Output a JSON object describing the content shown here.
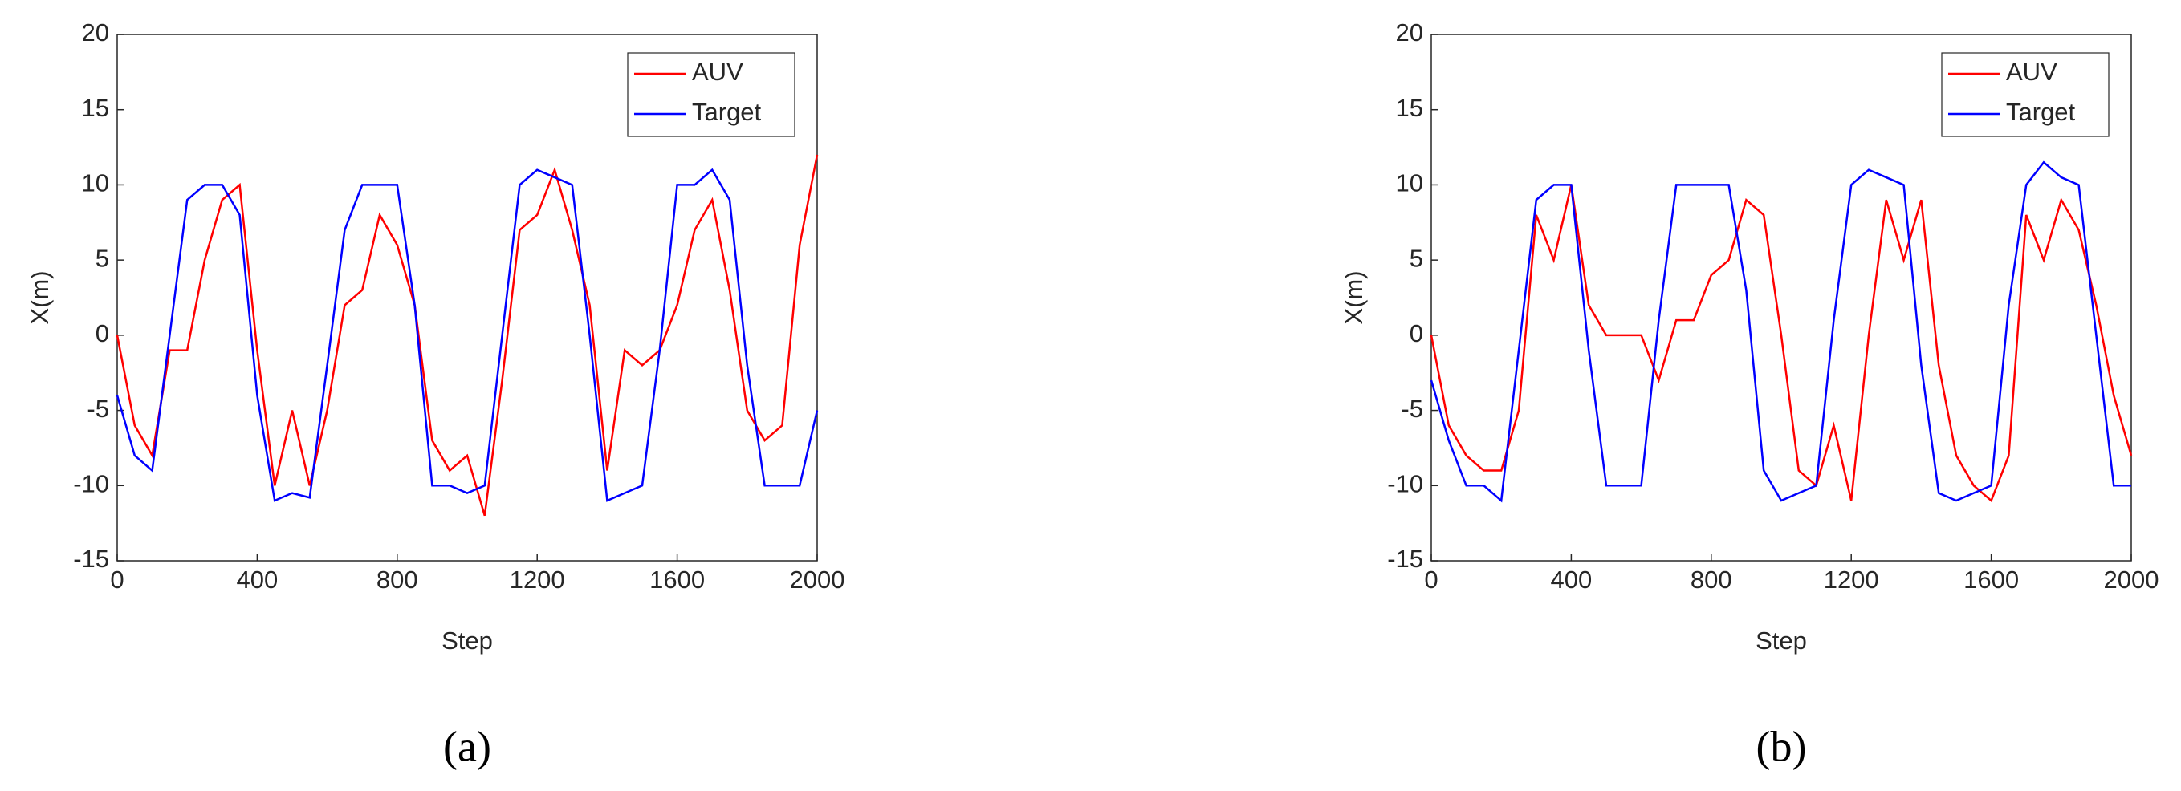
{
  "chart_data": [
    {
      "type": "line",
      "caption": "(a)",
      "xlabel": "Step",
      "ylabel": "X(m)",
      "legend": "upper right",
      "x": [
        0,
        50,
        100,
        150,
        200,
        250,
        300,
        350,
        400,
        450,
        500,
        550,
        600,
        650,
        700,
        750,
        800,
        850,
        900,
        950,
        1000,
        1050,
        1100,
        1150,
        1200,
        1250,
        1300,
        1350,
        1400,
        1450,
        1500,
        1550,
        1600,
        1650,
        1700,
        1750,
        1800,
        1850,
        1900,
        1950,
        2000
      ],
      "series": [
        {
          "name": "AUV",
          "color": "#ff0000",
          "values": [
            0,
            -6,
            -8,
            -1,
            -1,
            5,
            9,
            10,
            -1,
            -10,
            -5,
            -10,
            -5,
            2,
            3,
            8,
            6,
            2,
            -7,
            -9,
            -8,
            -12,
            -3,
            7,
            8,
            11,
            7,
            2,
            -9,
            -1,
            -2,
            -1,
            2,
            7,
            9,
            3,
            -5,
            -7,
            -6,
            6,
            12
          ]
        },
        {
          "name": "Target",
          "color": "#0000ff",
          "values": [
            -4,
            -8,
            -9,
            0,
            9,
            10,
            10,
            8,
            -4,
            -11,
            -10.5,
            -10.8,
            -2,
            7,
            10,
            10,
            10,
            2,
            -10,
            -10,
            -10.5,
            -10,
            0,
            10,
            11,
            10.5,
            10,
            0,
            -11,
            -10.5,
            -10,
            -1,
            10,
            10,
            11,
            9,
            -2,
            -10,
            -10,
            -10,
            -5
          ]
        }
      ],
      "xlim": [
        0,
        2000
      ],
      "xticks": [
        0,
        400,
        800,
        1200,
        1600,
        2000
      ],
      "ylim": [
        -15,
        20
      ],
      "yticks": [
        -15,
        -10,
        -5,
        0,
        5,
        10,
        15,
        20
      ]
    },
    {
      "type": "line",
      "caption": "(b)",
      "xlabel": "Step",
      "ylabel": "X(m)",
      "legend": "upper right",
      "x": [
        0,
        50,
        100,
        150,
        200,
        250,
        300,
        350,
        400,
        450,
        500,
        550,
        600,
        650,
        700,
        750,
        800,
        850,
        900,
        950,
        1000,
        1050,
        1100,
        1150,
        1200,
        1250,
        1300,
        1350,
        1400,
        1450,
        1500,
        1550,
        1600,
        1650,
        1700,
        1750,
        1800,
        1850,
        1900,
        1950,
        2000
      ],
      "series": [
        {
          "name": "AUV",
          "color": "#ff0000",
          "values": [
            0,
            -6,
            -8,
            -9,
            -9,
            -5,
            8,
            5,
            10,
            2,
            0,
            0,
            0,
            -3,
            1,
            1,
            4,
            5,
            9,
            8,
            0,
            -9,
            -10,
            -6,
            -11,
            0,
            9,
            5,
            9,
            -2,
            -8,
            -10,
            -11,
            -8,
            8,
            5,
            9,
            7,
            2,
            -4,
            -8
          ]
        },
        {
          "name": "Target",
          "color": "#0000ff",
          "values": [
            -3,
            -7,
            -10,
            -10,
            -11,
            -1,
            9,
            10,
            10,
            -1,
            -10,
            -10,
            -10,
            1,
            10,
            10,
            10,
            10,
            3,
            -9,
            -11,
            -10.5,
            -10,
            1,
            10,
            11,
            10.5,
            10,
            -2,
            -10.5,
            -11,
            -10.5,
            -10,
            2,
            10,
            11.5,
            10.5,
            10,
            0,
            -10,
            -10
          ]
        }
      ],
      "xlim": [
        0,
        2000
      ],
      "xticks": [
        0,
        400,
        800,
        1200,
        1600,
        2000
      ],
      "ylim": [
        -15,
        20
      ],
      "yticks": [
        -15,
        -10,
        -5,
        0,
        5,
        10,
        15,
        20
      ]
    }
  ]
}
